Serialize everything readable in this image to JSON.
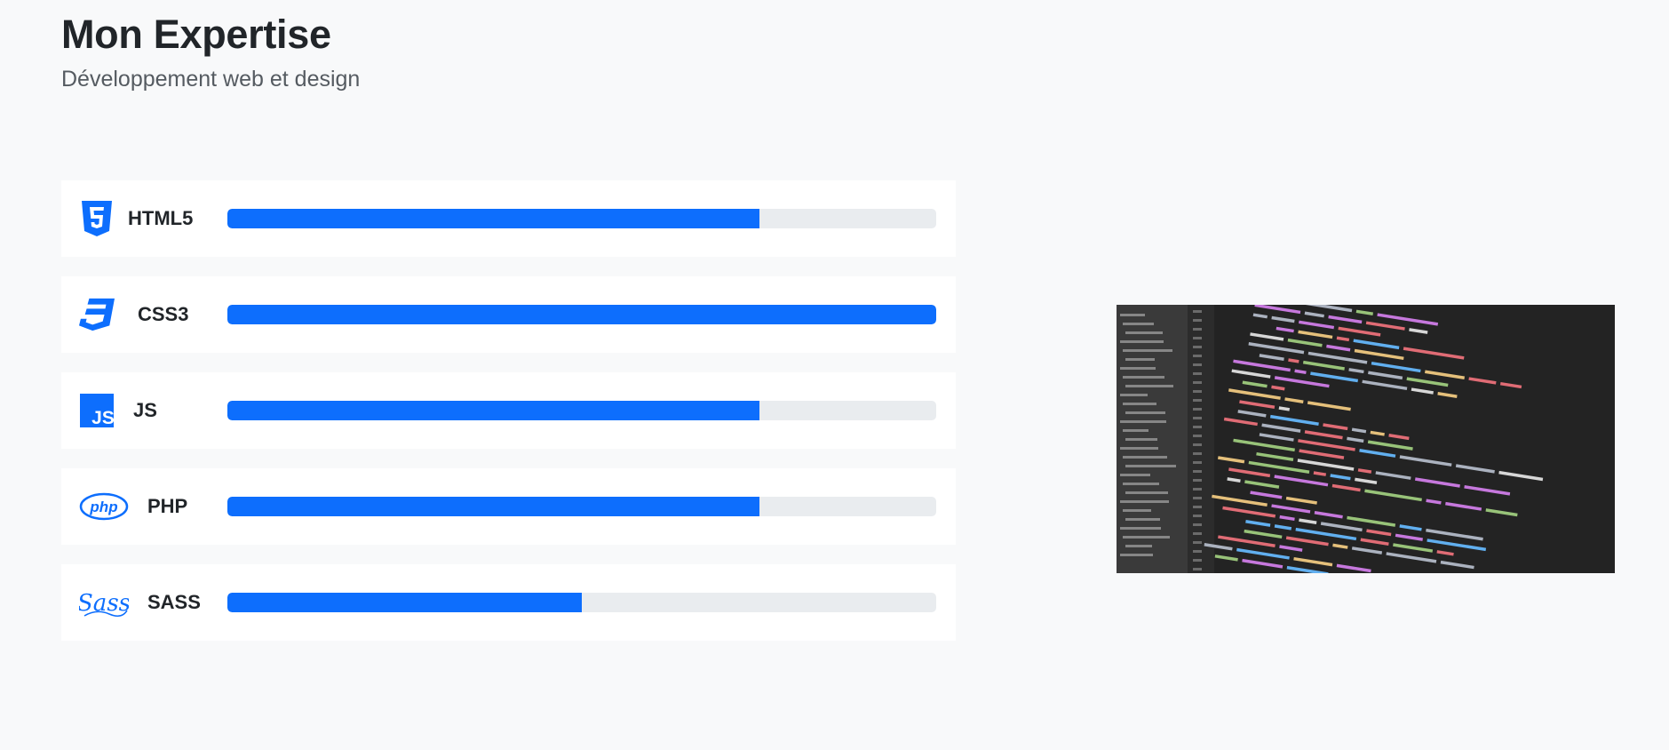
{
  "header": {
    "title": "Mon Expertise",
    "subtitle": "Développement web et design"
  },
  "skills": [
    {
      "name": "HTML5",
      "icon": "html5-icon",
      "level": 0.75
    },
    {
      "name": "CSS3",
      "icon": "css3-icon",
      "level": 1.0
    },
    {
      "name": "JS",
      "icon": "js-icon",
      "level": 0.75
    },
    {
      "name": "PHP",
      "icon": "php-icon",
      "level": 0.75
    },
    {
      "name": "SASS",
      "icon": "sass-icon",
      "level": 0.5
    }
  ],
  "colors": {
    "accent": "#0d6efd",
    "track": "#e9ecef",
    "background": "#f8f9fa",
    "card": "#ffffff"
  }
}
